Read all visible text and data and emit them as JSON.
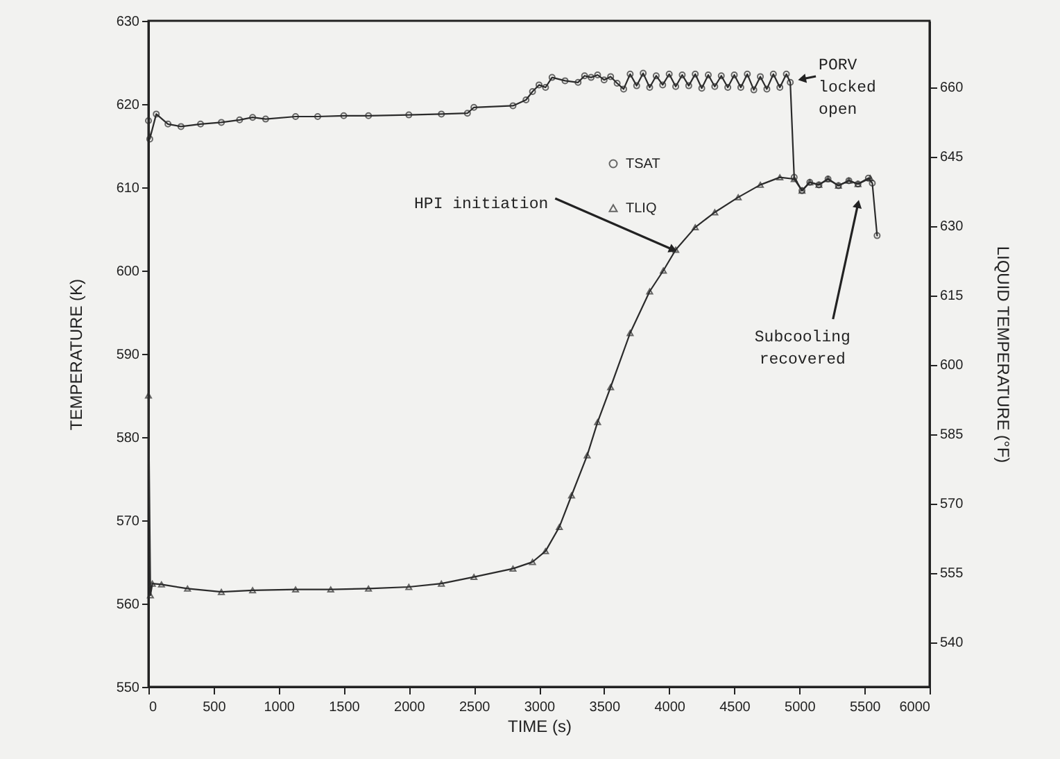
{
  "chart_data": {
    "type": "line",
    "xlabel": "TIME (s)",
    "ylabel": "TEMPERATURE (K)",
    "y2label": "LIQUID TEMPERATURE (°F)",
    "xlim": [
      0,
      6000
    ],
    "xticks": [
      0,
      500,
      1000,
      1500,
      2000,
      2500,
      3000,
      3500,
      4000,
      4500,
      5000,
      5500,
      6000
    ],
    "ylim": [
      550,
      630
    ],
    "yticks": [
      550,
      560,
      570,
      580,
      590,
      600,
      610,
      620,
      630
    ],
    "y2lim": [
      530.3,
      674.3
    ],
    "y2ticks": [
      540,
      555,
      570,
      585,
      600,
      615,
      630,
      645,
      660
    ],
    "grid": false,
    "legend": "right",
    "series": [
      {
        "name": "TSAT",
        "color": "#2b2b2b",
        "marker": "circle",
        "x": [
          0,
          10,
          60,
          150,
          250,
          400,
          560,
          700,
          800,
          900,
          1130,
          1300,
          1500,
          1690,
          2000,
          2250,
          2450,
          2500,
          2800,
          2900,
          2950,
          3000,
          3050,
          3100,
          3200,
          3300,
          3350,
          3400,
          3450,
          3500,
          3550,
          3600,
          3650,
          3700,
          3750,
          3800,
          3850,
          3900,
          3950,
          4000,
          4050,
          4100,
          4150,
          4200,
          4250,
          4300,
          4350,
          4400,
          4450,
          4500,
          4550,
          4600,
          4650,
          4700,
          4750,
          4800,
          4850,
          4900,
          4930,
          4960,
          5020,
          5080,
          5150,
          5220,
          5300,
          5380,
          5450,
          5530,
          5560,
          5597
        ],
        "values": [
          618,
          615.8,
          618.8,
          617.6,
          617.3,
          617.6,
          617.8,
          618.1,
          618.4,
          618.2,
          618.5,
          618.5,
          618.6,
          618.6,
          618.7,
          618.8,
          618.9,
          619.6,
          619.8,
          620.5,
          621.5,
          622.3,
          622,
          623.2,
          622.8,
          622.6,
          623.4,
          623.2,
          623.5,
          622.9,
          623.3,
          622.5,
          621.8,
          623.6,
          622.2,
          623.7,
          622,
          623.4,
          622.3,
          623.6,
          622.1,
          623.5,
          622.2,
          623.6,
          621.9,
          623.5,
          622.1,
          623.4,
          622,
          623.5,
          622,
          623.6,
          621.7,
          623.3,
          621.8,
          623.6,
          622,
          623.6,
          622.6,
          611.2,
          609.6,
          610.6,
          610.3,
          611,
          610.2,
          610.8,
          610.4,
          611.1,
          610.5,
          604.2
        ]
      },
      {
        "name": "TLIQ",
        "color": "#2b2b2b",
        "marker": "triangle",
        "x": [
          0,
          15,
          30,
          100,
          300,
          560,
          800,
          1130,
          1400,
          1690,
          2000,
          2250,
          2500,
          2800,
          2950,
          3050,
          3156,
          3250,
          3370,
          3450,
          3550,
          3700,
          3850,
          3955,
          4050,
          4200,
          4350,
          4530,
          4700,
          4850,
          4960,
          5020,
          5080,
          5150,
          5220,
          5300,
          5380,
          5450,
          5544
        ],
        "values": [
          585,
          561,
          562.4,
          562.3,
          561.8,
          561.4,
          561.6,
          561.7,
          561.7,
          561.8,
          562,
          562.4,
          563.2,
          564.2,
          565,
          566.3,
          569.2,
          573,
          577.8,
          581.8,
          586,
          592.5,
          597.5,
          600,
          602.5,
          605.2,
          607,
          608.8,
          610.3,
          611.2,
          611,
          609.6,
          610.6,
          610.3,
          611,
          610.2,
          610.8,
          610.4,
          611.1
        ]
      }
    ],
    "annotations": [
      {
        "text": "HPI initiation",
        "x": 4030,
        "y": 602.5
      },
      {
        "text": "PORV locked open",
        "x": 5020,
        "y": 623
      },
      {
        "text": "Subcooling recovered",
        "x": 5450,
        "y": 608
      }
    ]
  }
}
